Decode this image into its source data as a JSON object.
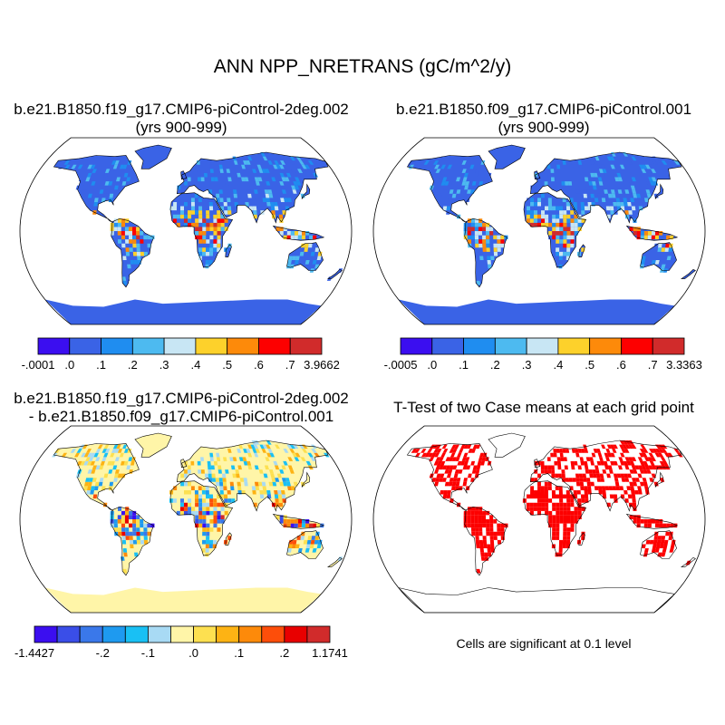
{
  "title": "ANN NPP_NRETRANS (gC/m^2/y)",
  "panels": {
    "case1": {
      "title_line1": "b.e21.B1850.f19_g17.CMIP6-piControl-2deg.002",
      "title_line2": "(yrs 900-999)"
    },
    "case2": {
      "title_line1": "b.e21.B1850.f09_g17.CMIP6-piControl.001",
      "title_line2": "(yrs 900-999)"
    },
    "diff": {
      "title_line1": "b.e21.B1850.f19_g17.CMIP6-piControl-2deg.002",
      "title_line2": "- b.e21.B1850.f09_g17.CMIP6-piControl.001"
    },
    "ttest": {
      "title": "T-Test of two Case means at each grid point",
      "note": "Cells are significant at 0.1 level"
    }
  },
  "colorbars": {
    "case1": {
      "colors": [
        "#3b0ef0",
        "#3a63e6",
        "#1f8df0",
        "#4dbaf0",
        "#c8e6f4",
        "#fdd12b",
        "#fd8a0a",
        "#fd0000",
        "#d12b2b"
      ],
      "labels": [
        "-.0001",
        ".0",
        ".1",
        ".2",
        ".3",
        ".4",
        ".5",
        ".6",
        ".7",
        "3.9662"
      ]
    },
    "case2": {
      "colors": [
        "#3b0ef0",
        "#3a63e6",
        "#1f8df0",
        "#4dbaf0",
        "#c8e6f4",
        "#fdd12b",
        "#fd8a0a",
        "#fd0000",
        "#d12b2b"
      ],
      "labels": [
        "-.0005",
        ".0",
        ".1",
        ".2",
        ".3",
        ".4",
        ".5",
        ".6",
        ".7",
        "3.3363"
      ]
    },
    "diff": {
      "colors": [
        "#3b0ef0",
        "#3a4ee8",
        "#3a78ea",
        "#1e9af0",
        "#19c0f4",
        "#a8daf4",
        "#fff5a8",
        "#fde050",
        "#fdb314",
        "#fd8a0a",
        "#fd4e0a",
        "#e80000",
        "#d12b2b"
      ],
      "labels": [
        "-1.4427",
        "",
        "",
        "-.2",
        "",
        "-.1",
        "",
        ".0",
        "",
        ".1",
        "",
        ".2",
        "",
        "1.1741"
      ]
    }
  },
  "map_colors": {
    "case_ocean_land_base": "#3a63e6",
    "diff_land_base": "#fff5a8",
    "ttest_significant": "#fd0000"
  }
}
